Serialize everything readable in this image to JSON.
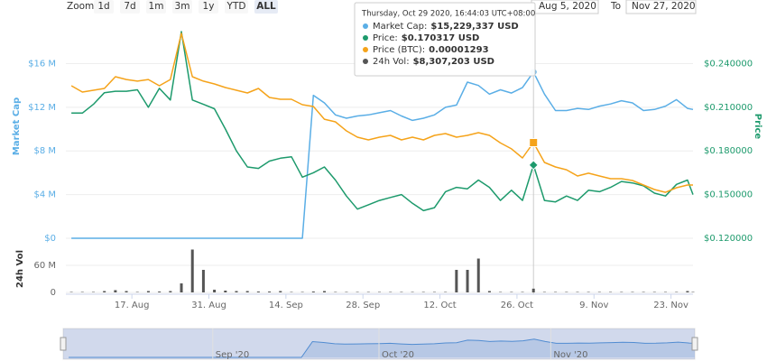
{
  "controls": {
    "zoom_label": "Zoom",
    "buttons": [
      "1d",
      "7d",
      "1m",
      "3m",
      "1y",
      "YTD",
      "ALL"
    ],
    "selected": "ALL",
    "from": "Aug 5, 2020",
    "to_label": "To",
    "to": "Nov 27, 2020"
  },
  "chart_data": {
    "type": "line",
    "x": [
      "2020-08-06",
      "2020-08-08",
      "2020-08-10",
      "2020-08-12",
      "2020-08-14",
      "2020-08-16",
      "2020-08-18",
      "2020-08-20",
      "2020-08-22",
      "2020-08-24",
      "2020-08-26",
      "2020-08-28",
      "2020-08-30",
      "2020-09-01",
      "2020-09-03",
      "2020-09-05",
      "2020-09-07",
      "2020-09-09",
      "2020-09-11",
      "2020-09-13",
      "2020-09-15",
      "2020-09-17",
      "2020-09-19",
      "2020-09-21",
      "2020-09-23",
      "2020-09-25",
      "2020-09-27",
      "2020-09-29",
      "2020-10-01",
      "2020-10-03",
      "2020-10-05",
      "2020-10-07",
      "2020-10-09",
      "2020-10-11",
      "2020-10-13",
      "2020-10-15",
      "2020-10-17",
      "2020-10-19",
      "2020-10-21",
      "2020-10-23",
      "2020-10-25",
      "2020-10-27",
      "2020-10-29",
      "2020-10-31",
      "2020-11-02",
      "2020-11-04",
      "2020-11-06",
      "2020-11-08",
      "2020-11-10",
      "2020-11-12",
      "2020-11-14",
      "2020-11-16",
      "2020-11-18",
      "2020-11-20",
      "2020-11-22",
      "2020-11-24",
      "2020-11-26",
      "2020-11-27"
    ],
    "series": [
      {
        "name": "Market Cap",
        "color": "#5aaee6",
        "axis": "y",
        "type": "line",
        "values": [
          0,
          0,
          0,
          0,
          0,
          0,
          0,
          0,
          0,
          0,
          0,
          0,
          0,
          0,
          0,
          0,
          0,
          0,
          0,
          0,
          0,
          0,
          13100000,
          12400000,
          11300000,
          11000000,
          11200000,
          11300000,
          11500000,
          11700000,
          11200000,
          10800000,
          11000000,
          11300000,
          12000000,
          12200000,
          14300000,
          14000000,
          13200000,
          13600000,
          13300000,
          13800000,
          15229337,
          13200000,
          11700000,
          11700000,
          11900000,
          11800000,
          12100000,
          12300000,
          12600000,
          12400000,
          11700000,
          11800000,
          12100000,
          12700000,
          11900000,
          11800000
        ]
      },
      {
        "name": "Price",
        "color": "#1d9a6c",
        "axis": "y2",
        "type": "line",
        "values": [
          0.206,
          0.206,
          0.212,
          0.22,
          0.221,
          0.221,
          0.222,
          0.21,
          0.223,
          0.215,
          0.262,
          0.215,
          0.212,
          0.209,
          0.195,
          0.18,
          0.169,
          0.168,
          0.173,
          0.175,
          0.176,
          0.162,
          0.165,
          0.169,
          0.16,
          0.149,
          0.14,
          0.143,
          0.146,
          0.148,
          0.15,
          0.144,
          0.139,
          0.141,
          0.152,
          0.155,
          0.154,
          0.16,
          0.155,
          0.146,
          0.153,
          0.146,
          0.170317,
          0.146,
          0.145,
          0.149,
          0.146,
          0.153,
          0.152,
          0.155,
          0.159,
          0.158,
          0.156,
          0.151,
          0.149,
          0.157,
          0.16,
          0.15
        ]
      },
      {
        "name": "Price (BTC)",
        "color": "#f5a31a",
        "axis": "y3",
        "type": "line",
        "values": [
          1.764e-05,
          1.712e-05,
          1.727e-05,
          1.742e-05,
          1.839e-05,
          1.816e-05,
          1.802e-05,
          1.816e-05,
          1.764e-05,
          1.816e-05,
          2.198e-05,
          1.839e-05,
          1.802e-05,
          1.779e-05,
          1.749e-05,
          1.727e-05,
          1.704e-05,
          1.742e-05,
          1.667e-05,
          1.652e-05,
          1.652e-05,
          1.607e-05,
          1.592e-05,
          1.487e-05,
          1.465e-05,
          1.39e-05,
          1.338e-05,
          1.315e-05,
          1.338e-05,
          1.353e-05,
          1.315e-05,
          1.338e-05,
          1.315e-05,
          1.353e-05,
          1.368e-05,
          1.338e-05,
          1.353e-05,
          1.375e-05,
          1.353e-05,
          1.29e-05,
          1.241e-05,
          1.166e-05,
          1.293e-05,
          1.128e-05,
          1.091e-05,
          1.068e-05,
          1.016e-05,
          1.039e-05,
          1.016e-05,
          9.94e-06,
          9.94e-06,
          9.79e-06,
          9.41e-06,
          9.04e-06,
          8.81e-06,
          9.19e-06,
          9.41e-06,
          9.41e-06
        ]
      },
      {
        "name": "24h Vol",
        "color": "#555555",
        "axis": "vol",
        "type": "column",
        "values": [
          1000000,
          1000000,
          1000000,
          3000000,
          5000000,
          3000000,
          1000000,
          3000000,
          2000000,
          3000000,
          20000000,
          95000000,
          50000000,
          6000000,
          4000000,
          3000000,
          3000000,
          2000000,
          2000000,
          3000000,
          1000000,
          1000000,
          2000000,
          3000000,
          1000000,
          1000000,
          1000000,
          1000000,
          1000000,
          1000000,
          1000000,
          1000000,
          1000000,
          1000000,
          1000000,
          50000000,
          50000000,
          75000000,
          3000000,
          1000000,
          1000000,
          1000000,
          8307203,
          1000000,
          1000000,
          1000000,
          1000000,
          1000000,
          1000000,
          1000000,
          1000000,
          1000000,
          1000000,
          1000000,
          1000000,
          1000000,
          3000000,
          1000000
        ]
      }
    ],
    "xlim": [
      "2020-08-05",
      "2020-11-27"
    ],
    "xticks": [
      {
        "value": "2020-08-17",
        "label": "17. Aug"
      },
      {
        "value": "2020-08-31",
        "label": "31. Aug"
      },
      {
        "value": "2020-09-14",
        "label": "14. Sep"
      },
      {
        "value": "2020-09-28",
        "label": "28. Sep"
      },
      {
        "value": "2020-10-12",
        "label": "12. Oct"
      },
      {
        "value": "2020-10-26",
        "label": "26. Oct"
      },
      {
        "value": "2020-11-09",
        "label": "9. Nov"
      },
      {
        "value": "2020-11-23",
        "label": "23. Nov"
      }
    ],
    "ylabel": "Market Cap",
    "ylim": [
      0,
      21000000
    ],
    "yticks": [
      {
        "value": 0,
        "label": "$0"
      },
      {
        "value": 4000000,
        "label": "$4 M"
      },
      {
        "value": 8000000,
        "label": "$8 M"
      },
      {
        "value": 12000000,
        "label": "$12 M"
      },
      {
        "value": 16000000,
        "label": "$16 M"
      }
    ],
    "y2label": "Price",
    "y2lim": [
      0.12,
      0.2775
    ],
    "y2ticks": [
      {
        "value": 0.12,
        "label": "$0.120000"
      },
      {
        "value": 0.15,
        "label": "$0.150000"
      },
      {
        "value": 0.18,
        "label": "$0.180000"
      },
      {
        "value": 0.21,
        "label": "$0.210000"
      },
      {
        "value": 0.24,
        "label": "$0.240000"
      }
    ],
    "y3lim": [
      5e-06,
      2.4e-05
    ],
    "vol_label": "24h Vol",
    "vol_ylim": [
      0,
      98000000
    ],
    "vol_yticks": [
      0,
      {
        "value": 60000000,
        "label": "60 M"
      }
    ],
    "grid": true,
    "crosshair": "2020-10-29",
    "tooltip": {
      "title": "Thursday, Oct 29 2020, 16:44:03 UTC+08:00",
      "items": [
        {
          "label": "Market Cap:",
          "value": "$15,229,337 USD"
        },
        {
          "label": "Price:",
          "value": "$0.170317 USD"
        },
        {
          "label": "Price (BTC):",
          "value": "0.00001293"
        },
        {
          "label": "24h Vol:",
          "value": "$8,307,203 USD"
        }
      ]
    },
    "navigator_ticks": [
      {
        "value": "2020-09-01",
        "label": "Sep '20"
      },
      {
        "value": "2020-10-01",
        "label": "Oct '20"
      },
      {
        "value": "2020-11-01",
        "label": "Nov '20"
      }
    ]
  }
}
